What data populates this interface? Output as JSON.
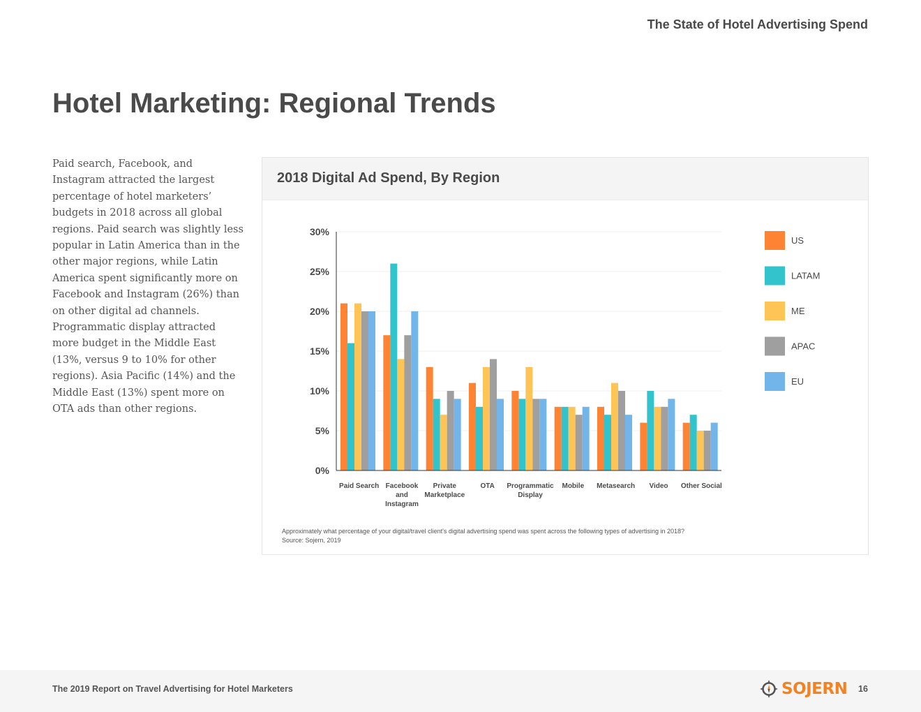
{
  "header": {
    "title": "The State of Hotel Advertising Spend"
  },
  "page": {
    "title": "Hotel Marketing: Regional Trends",
    "body": "Paid search, Facebook, and Instagram attracted the largest percentage of hotel marketers’ budgets in 2018 across all global regions. Paid search was slightly less popular in Latin America than in the other major regions, while Latin America spent significantly more on Facebook and Instagram (26%) than on other digital ad channels. Programmatic display attracted more budget in the Middle East (13%, versus 9 to 10% for other regions). Asia Pacific (14%) and the Middle East (13%) spent more on OTA ads than other regions."
  },
  "chart_card": {
    "title": "2018 Digital Ad Spend, By Region",
    "caption_question": "Approximately what percentage of your digital/travel client's digital advertising spend was spent across the following types of advertising in 2018?",
    "caption_source": "Source: Sojern, 2019"
  },
  "chart_data": {
    "type": "bar",
    "title": "2018 Digital Ad Spend, By Region",
    "categories": [
      [
        "Paid Search"
      ],
      [
        "Facebook",
        "and",
        "Instagram"
      ],
      [
        "Private",
        "Marketplace"
      ],
      [
        "OTA"
      ],
      [
        "Programmatic",
        "Display"
      ],
      [
        "Mobile"
      ],
      [
        "Metasearch"
      ],
      [
        "Video"
      ],
      [
        "Other Social"
      ]
    ],
    "series": [
      {
        "name": "US",
        "color": "#fe8433",
        "values": [
          21,
          17,
          13,
          11,
          10,
          8,
          8,
          6,
          6
        ]
      },
      {
        "name": "LATAM",
        "color": "#33c3cd",
        "values": [
          16,
          26,
          9,
          8,
          9,
          8,
          7,
          10,
          7
        ]
      },
      {
        "name": "ME",
        "color": "#fec455",
        "values": [
          21,
          14,
          7,
          13,
          13,
          8,
          11,
          8,
          5
        ]
      },
      {
        "name": "APAC",
        "color": "#9f9f9f",
        "values": [
          20,
          17,
          10,
          14,
          9,
          7,
          10,
          8,
          5
        ]
      },
      {
        "name": "EU",
        "color": "#72b5ea",
        "values": [
          20,
          20,
          9,
          9,
          9,
          8,
          7,
          9,
          6
        ]
      }
    ],
    "yticks": [
      0,
      5,
      10,
      15,
      20,
      25,
      30
    ],
    "ytick_suffix": "%",
    "ylim": [
      0,
      30
    ],
    "legend_position": "right",
    "grid": true
  },
  "footer": {
    "report_title": "The 2019 Report on Travel Advertising for Hotel Marketers",
    "logo_text": "SOJERN",
    "page_number": "16"
  }
}
